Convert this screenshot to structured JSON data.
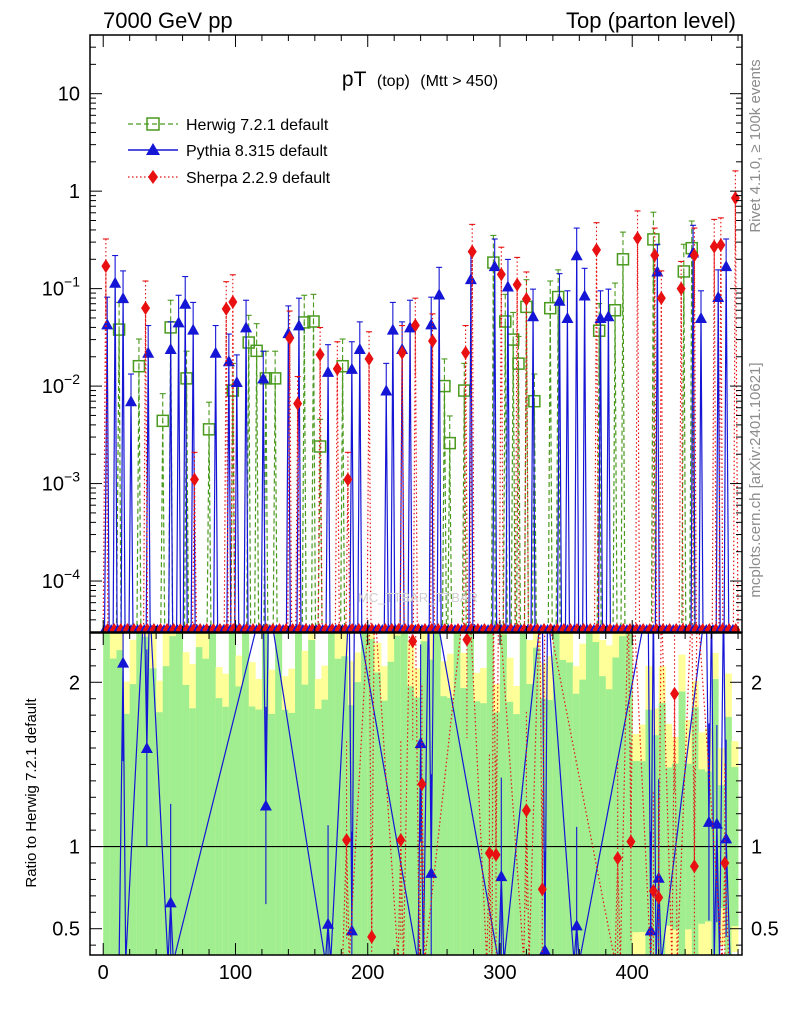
{
  "header": {
    "left_title": "7000 GeV pp",
    "right_title": "Top (parton level)"
  },
  "plot_title": {
    "main": "pT",
    "sub1": "(top)",
    "sub2": "(Mtt > 450)"
  },
  "watermark": "MC_TTBAR_TTBAR",
  "side_labels": {
    "rivet": "Rivet 4.1.0, ≥ 100k events",
    "mcplots": "mcplots.cern.ch [arXiv:2401.10621]"
  },
  "ratio_ylabel": "Ratio to Herwig 7.2.1 default",
  "colors": {
    "herwig": "#4a9a1e",
    "pythia": "#1515d6",
    "sherpa": "#e81010",
    "band_inner": "#a0ee90",
    "band_outer": "#ffff99"
  },
  "chart_data": [
    {
      "type": "line",
      "scale": "log",
      "xlim": [
        -10,
        483
      ],
      "ylim": [
        3e-05,
        40
      ],
      "x_ticks": [
        0,
        100,
        200,
        300,
        400
      ],
      "y_ticks": [
        {
          "v": 0.0001,
          "base": "10",
          "exp": "−4"
        },
        {
          "v": 0.001,
          "base": "10",
          "exp": "−3"
        },
        {
          "v": 0.01,
          "base": "10",
          "exp": "−2"
        },
        {
          "v": 0.1,
          "base": "10",
          "exp": "−1"
        },
        {
          "v": 1,
          "label": "1"
        },
        {
          "v": 10,
          "label": "10"
        }
      ],
      "legend": [
        "Herwig 7.2.1 default",
        "Pythia 8.315 default",
        "Sherpa 2.2.9 default"
      ],
      "series": [
        {
          "name": "Herwig 7.2.1 default",
          "points": [
            [
              12,
              0.038
            ],
            [
              27,
              0.016
            ],
            [
              45,
              0.0044
            ],
            [
              51,
              0.04
            ],
            [
              63,
              0.012
            ],
            [
              80,
              0.0036
            ],
            [
              98,
              0.009
            ],
            [
              110,
              0.028
            ],
            [
              116,
              0.023
            ],
            [
              123,
              0.012
            ],
            [
              130,
              0.012
            ],
            [
              152,
              0.045
            ],
            [
              159,
              0.046
            ],
            [
              164,
              0.0024
            ],
            [
              181,
              0.016
            ],
            [
              258,
              0.01
            ],
            [
              262,
              0.0026
            ],
            [
              273,
              0.009
            ],
            [
              295,
              0.185
            ],
            [
              304,
              0.046
            ],
            [
              310,
              0.03
            ],
            [
              314,
              0.017
            ],
            [
              320,
              0.065
            ],
            [
              326,
              0.007
            ],
            [
              338,
              0.063
            ],
            [
              344,
              0.082
            ],
            [
              375,
              0.037
            ],
            [
              387,
              0.06
            ],
            [
              393,
              0.2
            ],
            [
              416,
              0.32
            ],
            [
              439,
              0.15
            ],
            [
              445,
              0.26
            ]
          ]
        },
        {
          "name": "Pythia 8.315 default",
          "points": [
            [
              3,
              0.043
            ],
            [
              9,
              0.115
            ],
            [
              15,
              0.08
            ],
            [
              21,
              0.007
            ],
            [
              34,
              0.022
            ],
            [
              51,
              0.024
            ],
            [
              57,
              0.045
            ],
            [
              62,
              0.07
            ],
            [
              68,
              0.038
            ],
            [
              85,
              0.022
            ],
            [
              95,
              0.018
            ],
            [
              101,
              0.011
            ],
            [
              108,
              0.04
            ],
            [
              121,
              0.012
            ],
            [
              140,
              0.035
            ],
            [
              148,
              0.042
            ],
            [
              170,
              0.014
            ],
            [
              188,
              0.015
            ],
            [
              194,
              0.024
            ],
            [
              214,
              0.009
            ],
            [
              219,
              0.038
            ],
            [
              226,
              0.024
            ],
            [
              232,
              0.04
            ],
            [
              248,
              0.043
            ],
            [
              254,
              0.087
            ],
            [
              278,
              0.125
            ],
            [
              296,
              0.17
            ],
            [
              306,
              0.105
            ],
            [
              325,
              0.052
            ],
            [
              345,
              0.075
            ],
            [
              351,
              0.05
            ],
            [
              358,
              0.22
            ],
            [
              364,
              0.085
            ],
            [
              376,
              0.05
            ],
            [
              382,
              0.052
            ],
            [
              419,
              0.15
            ],
            [
              446,
              0.235
            ],
            [
              452,
              0.05
            ],
            [
              465,
              0.082
            ],
            [
              471,
              0.17
            ]
          ]
        },
        {
          "name": "Sherpa 2.2.9 default",
          "points": [
            [
              2,
              0.17
            ],
            [
              32,
              0.063
            ],
            [
              69,
              0.0011
            ],
            [
              93,
              0.062
            ],
            [
              98,
              0.073
            ],
            [
              141,
              0.031
            ],
            [
              147,
              0.0066
            ],
            [
              164,
              0.021
            ],
            [
              177,
              0.015
            ],
            [
              185,
              0.0011
            ],
            [
              201,
              0.019
            ],
            [
              226,
              0.022
            ],
            [
              236,
              0.042
            ],
            [
              249,
              0.029
            ],
            [
              274,
              0.022
            ],
            [
              279,
              0.24
            ],
            [
              301,
              0.14
            ],
            [
              313,
              0.11
            ],
            [
              320,
              0.078
            ],
            [
              373,
              0.25
            ],
            [
              404,
              0.33
            ],
            [
              417,
              0.22
            ],
            [
              422,
              0.08
            ],
            [
              437,
              0.1
            ],
            [
              447,
              0.22
            ],
            [
              462,
              0.27
            ],
            [
              467,
              0.28
            ],
            [
              478,
              0.85
            ]
          ]
        }
      ]
    },
    {
      "type": "line",
      "ylim": [
        0.34,
        2.3
      ],
      "reference": 1,
      "y_ticks": [
        0.5,
        1,
        2
      ],
      "series": [
        {
          "name": "Pythia 8.315 default",
          "points": [
            [
              15,
              2.12
            ],
            [
              33,
              1.6
            ],
            [
              51,
              0.66
            ],
            [
              123,
              1.25
            ],
            [
              170,
              0.53
            ],
            [
              188,
              0.49
            ],
            [
              240,
              1.63
            ],
            [
              248,
              0.84
            ],
            [
              301,
              0.82
            ],
            [
              334,
              0.37
            ],
            [
              358,
              0.52
            ],
            [
              414,
              0.49
            ],
            [
              420,
              0.81
            ],
            [
              458,
              1.15
            ],
            [
              464,
              1.14
            ],
            [
              471,
              1.05
            ]
          ]
        },
        {
          "name": "Sherpa 2.2.9 default",
          "points": [
            [
              184,
              1.04
            ],
            [
              203,
              0.45
            ],
            [
              225,
              1.04
            ],
            [
              234,
              2.25
            ],
            [
              241,
              1.38
            ],
            [
              275,
              2.26
            ],
            [
              292,
              0.96
            ],
            [
              297,
              0.95
            ],
            [
              320,
              1.22
            ],
            [
              332,
              0.74
            ],
            [
              389,
              0.93
            ],
            [
              399,
              1.03
            ],
            [
              416,
              0.73
            ],
            [
              420,
              0.69
            ],
            [
              432,
              1.93
            ],
            [
              447,
              0.88
            ],
            [
              470,
              0.9
            ]
          ]
        }
      ]
    }
  ]
}
